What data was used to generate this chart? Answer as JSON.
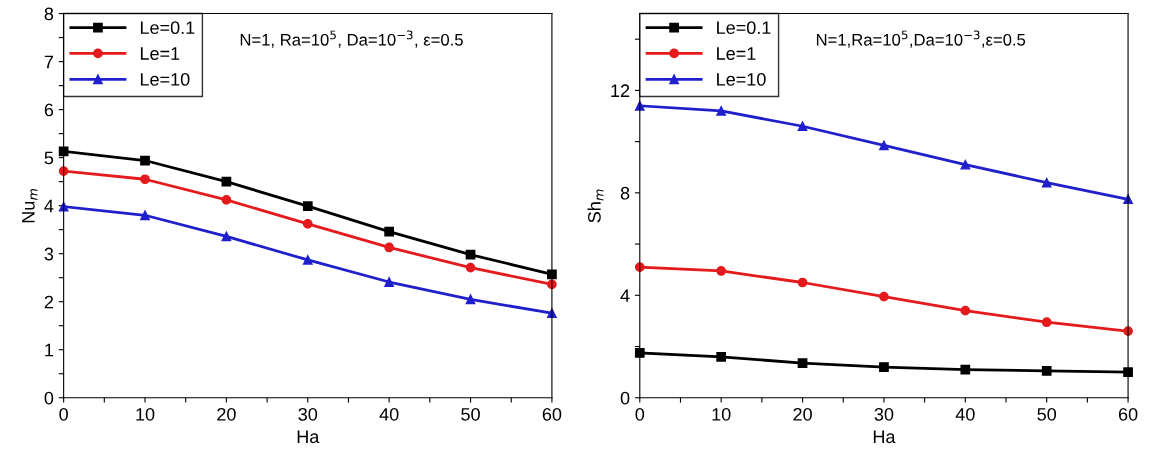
{
  "chart_data": [
    {
      "type": "line",
      "xlabel": "Ha",
      "ylabel": "Nu$_{m}$",
      "x": [
        0,
        10,
        20,
        30,
        40,
        50,
        60
      ],
      "xlim": [
        0,
        60
      ],
      "ylim": [
        0,
        8
      ],
      "xticks": [
        0,
        {
          "value": 5,
          "label": null
        },
        10,
        {
          "value": 15,
          "label": null
        },
        20,
        {
          "value": 25,
          "label": null
        },
        30,
        {
          "value": 35,
          "label": null
        },
        40,
        {
          "value": 45,
          "label": null
        },
        50,
        {
          "value": 55,
          "label": null
        },
        60
      ],
      "yticks": [
        0,
        {
          "value": 0.5,
          "label": null
        },
        1,
        {
          "value": 1.5,
          "label": null
        },
        2,
        {
          "value": 2.5,
          "label": null
        },
        3,
        {
          "value": 3.5,
          "label": null
        },
        4,
        {
          "value": 4.5,
          "label": null
        },
        5,
        {
          "value": 5.5,
          "label": null
        },
        6,
        {
          "value": 6.5,
          "label": null
        },
        7,
        {
          "value": 7.5,
          "label": null
        },
        8
      ],
      "grid": false,
      "legend": "top left",
      "annotations": [
        "N=1, Ra=10$^{5}$, Da=10$^{−3}$, ε=0.5"
      ],
      "series": [
        {
          "name": "Le=0.1",
          "color": "#000000",
          "marker": "square",
          "values": [
            5.13,
            4.94,
            4.5,
            3.99,
            3.46,
            2.98,
            2.57
          ]
        },
        {
          "name": "Le=1",
          "color": "#e41a1c",
          "marker": "circle",
          "values": [
            4.72,
            4.55,
            4.12,
            3.62,
            3.13,
            2.71,
            2.36
          ]
        },
        {
          "name": "Le=10",
          "color": "#1f1fcc",
          "marker": "triangle",
          "values": [
            3.98,
            3.8,
            3.36,
            2.87,
            2.41,
            2.05,
            1.76
          ]
        }
      ]
    },
    {
      "type": "line",
      "xlabel": "Ha",
      "ylabel": "Sh$_{m}$",
      "x": [
        0,
        10,
        20,
        30,
        40,
        50,
        60
      ],
      "xlim": [
        0,
        60
      ],
      "ylim": [
        0,
        15
      ],
      "xticks": [
        0,
        {
          "value": 5,
          "label": null
        },
        10,
        {
          "value": 15,
          "label": null
        },
        20,
        {
          "value": 25,
          "label": null
        },
        30,
        {
          "value": 35,
          "label": null
        },
        40,
        {
          "value": 45,
          "label": null
        },
        50,
        {
          "value": 55,
          "label": null
        },
        60
      ],
      "yticks": [
        0,
        {
          "value": 2,
          "label": null
        },
        4,
        {
          "value": 6,
          "label": null
        },
        8,
        {
          "value": 10,
          "label": null
        },
        12,
        {
          "value": 14,
          "label": null
        }
      ],
      "grid": false,
      "legend": "top left",
      "annotations": [
        "N=1,Ra=10$^{5}$,Da=10$^{−3}$,ε=0.5"
      ],
      "series": [
        {
          "name": "Le=0.1",
          "color": "#000000",
          "marker": "square",
          "values": [
            1.75,
            1.6,
            1.35,
            1.2,
            1.1,
            1.05,
            1.0
          ]
        },
        {
          "name": "Le=1",
          "color": "#e41a1c",
          "marker": "circle",
          "values": [
            5.1,
            4.95,
            4.5,
            3.95,
            3.4,
            2.95,
            2.6
          ]
        },
        {
          "name": "Le=10",
          "color": "#1f1fcc",
          "marker": "triangle",
          "values": [
            11.4,
            11.2,
            10.6,
            9.85,
            9.1,
            8.4,
            7.75
          ]
        }
      ]
    }
  ]
}
